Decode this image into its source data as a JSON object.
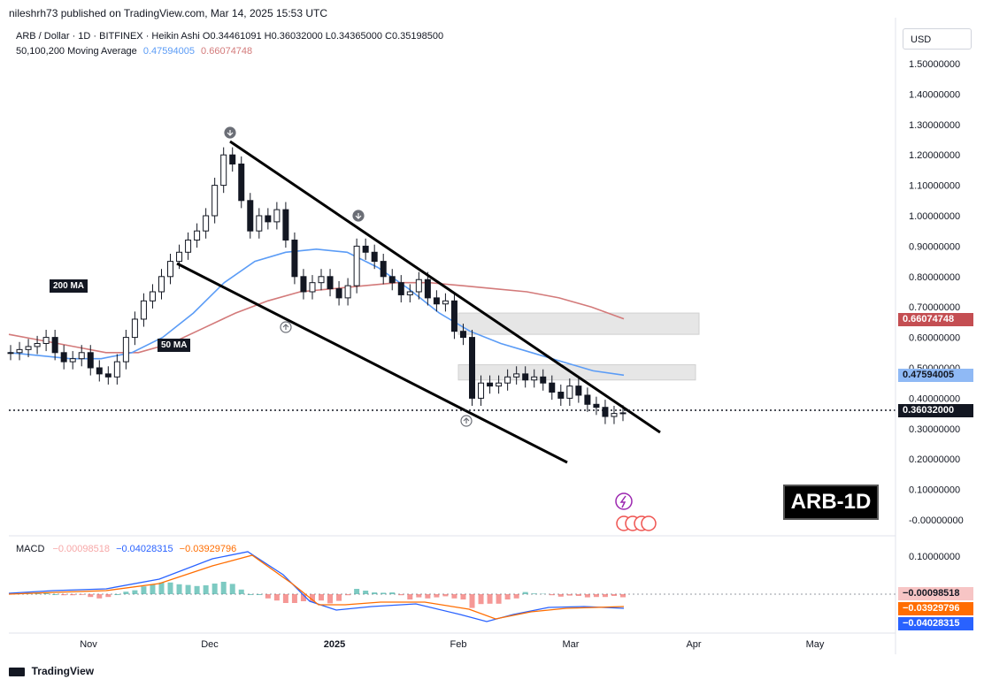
{
  "header": {
    "published": "nileshrh73 published on TradingView.com, Mar 14, 2025 15:53 UTC"
  },
  "legend": {
    "line1": "ARB / Dollar · 1D · BITFINEX · Heikin Ashi",
    "o": "O0.34461091",
    "h": "H0.36032000",
    "l": "L0.34365000",
    "c": "C0.35198500",
    "ma_title": "50,100,200 Moving Average",
    "ma50": "0.47594005",
    "ma200": "0.66074748"
  },
  "macd_legend": {
    "title": "MACD",
    "hist": "−0.00098518",
    "macd": "−0.04028315",
    "signal": "−0.03929796"
  },
  "currency": "USD",
  "footer": {
    "brand": "TradingView"
  },
  "annotations": {
    "ma200_label": "200 MA",
    "ma50_label": "50 MA",
    "symbol_box": "ARB-1D"
  },
  "tags": {
    "ma200": "0.66074748",
    "ma50": "0.47594005",
    "price": "0.36032000",
    "macd_hist": "−0.00098518",
    "macd_signal": "−0.03929796",
    "macd_line": "−0.04028315"
  },
  "colors": {
    "ma50": "#5b9cf6",
    "ma200": "#d37a7a",
    "macd": "#2962ff",
    "signal": "#ff6d00",
    "hist_pos": "#26a69a",
    "hist_neg": "#ef5350",
    "zone": "#e0e0e0"
  },
  "chart_data": {
    "type": "candlestick",
    "y_ticks": [
      "1.50000000",
      "1.40000000",
      "1.30000000",
      "1.20000000",
      "1.10000000",
      "1.00000000",
      "0.90000000",
      "0.80000000",
      "0.70000000",
      "0.60000000",
      "0.50000000",
      "0.40000000",
      "0.30000000",
      "0.20000000",
      "0.10000000",
      "-0.00000000"
    ],
    "macd_ticks": [
      "0.10000000"
    ],
    "x_ticks": [
      "Nov",
      "Dec",
      "2025",
      "Feb",
      "Mar",
      "Apr",
      "May"
    ],
    "ylim": [
      -0.02,
      1.55
    ],
    "price_series": {
      "name": "ARB / Dollar",
      "close": [
        0.55,
        0.56,
        0.57,
        0.58,
        0.6,
        0.55,
        0.52,
        0.53,
        0.55,
        0.5,
        0.48,
        0.47,
        0.52,
        0.6,
        0.66,
        0.72,
        0.75,
        0.8,
        0.85,
        0.88,
        0.92,
        0.95,
        1.0,
        1.1,
        1.2,
        1.17,
        1.05,
        0.95,
        1.0,
        0.98,
        1.02,
        0.92,
        0.8,
        0.75,
        0.78,
        0.8,
        0.76,
        0.73,
        0.77,
        0.9,
        0.88,
        0.85,
        0.8,
        0.78,
        0.74,
        0.75,
        0.79,
        0.73,
        0.71,
        0.72,
        0.62,
        0.6,
        0.4,
        0.45,
        0.44,
        0.45,
        0.47,
        0.48,
        0.46,
        0.47,
        0.45,
        0.42,
        0.4,
        0.44,
        0.41,
        0.38,
        0.37,
        0.34,
        0.35,
        0.352
      ]
    },
    "ma50": [
      0.55,
      0.54,
      0.53,
      0.53,
      0.55,
      0.6,
      0.68,
      0.78,
      0.85,
      0.88,
      0.89,
      0.88,
      0.83,
      0.76,
      0.68,
      0.62,
      0.58,
      0.55,
      0.52,
      0.49,
      0.476
    ],
    "ma200": [
      0.61,
      0.59,
      0.57,
      0.55,
      0.55,
      0.58,
      0.63,
      0.68,
      0.72,
      0.75,
      0.76,
      0.77,
      0.78,
      0.78,
      0.77,
      0.76,
      0.75,
      0.73,
      0.7,
      0.661
    ],
    "zones": [
      {
        "from": 0.61,
        "to": 0.68
      },
      {
        "from": 0.46,
        "to": 0.51
      }
    ],
    "last_price": 0.36032
  }
}
